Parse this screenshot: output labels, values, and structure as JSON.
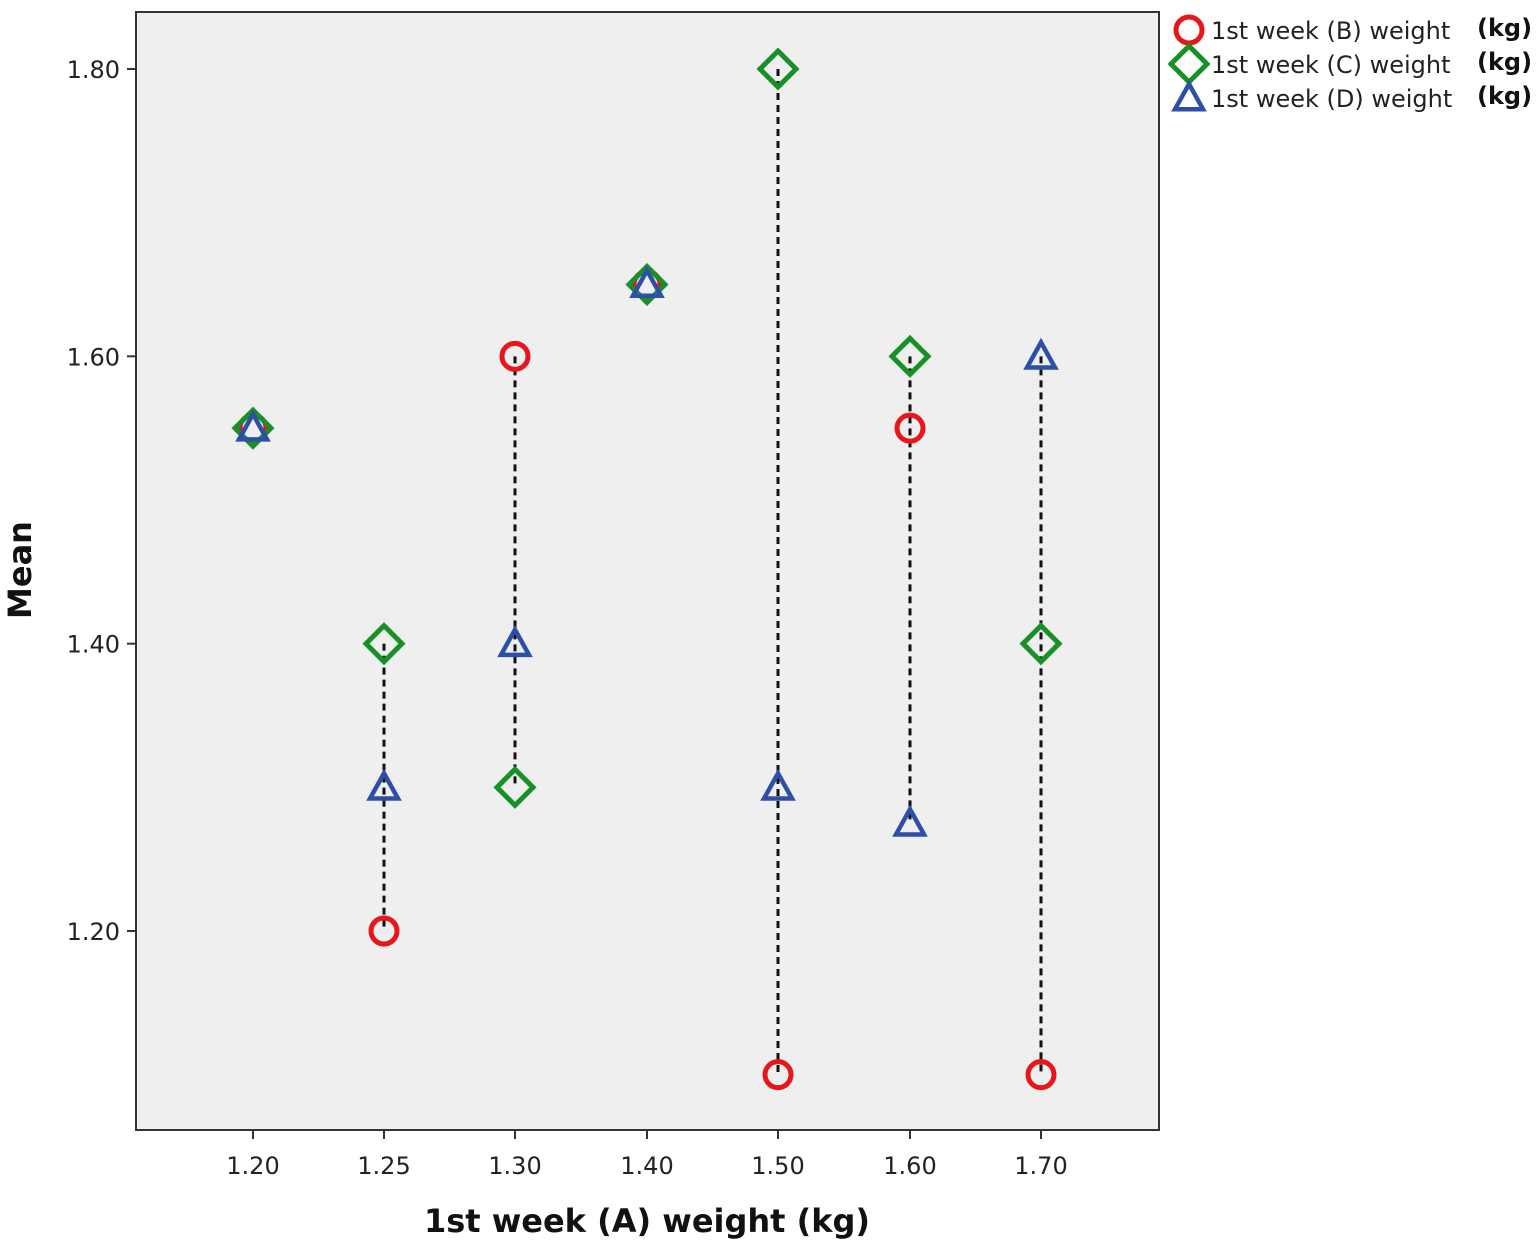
{
  "chart_data": {
    "type": "scatter",
    "xlabel": "1st week (A) weight (kg)",
    "ylabel": "Mean",
    "x_categories": [
      "1.20",
      "1.25",
      "1.30",
      "1.40",
      "1.50",
      "1.60",
      "1.70"
    ],
    "y_ticks": [
      "1.20",
      "1.40",
      "1.60",
      "1.80"
    ],
    "ylim": [
      1.07,
      1.84
    ],
    "grid": false,
    "background": "#efefef",
    "legend_position": "top-right, outside plot",
    "series": [
      {
        "name": "1st week (B) weight",
        "unit": "(kg)",
        "marker": "circle",
        "color": "#e8161b",
        "values": [
          1.55,
          1.2,
          1.6,
          1.65,
          1.1,
          1.55,
          1.1
        ]
      },
      {
        "name": "1st week (C) weight",
        "unit": "(kg)",
        "marker": "diamond",
        "color": "#179126",
        "values": [
          1.55,
          1.4,
          1.3,
          1.65,
          1.8,
          1.6,
          1.4
        ]
      },
      {
        "name": "1st week (D) weight",
        "unit": "(kg)",
        "marker": "triangle",
        "color": "#2e4fa8",
        "values": [
          1.55,
          1.3,
          1.4,
          1.65,
          1.3,
          1.275,
          1.6
        ]
      }
    ],
    "dropline_style": "dashed black vertical line spanning min to max at each x"
  }
}
